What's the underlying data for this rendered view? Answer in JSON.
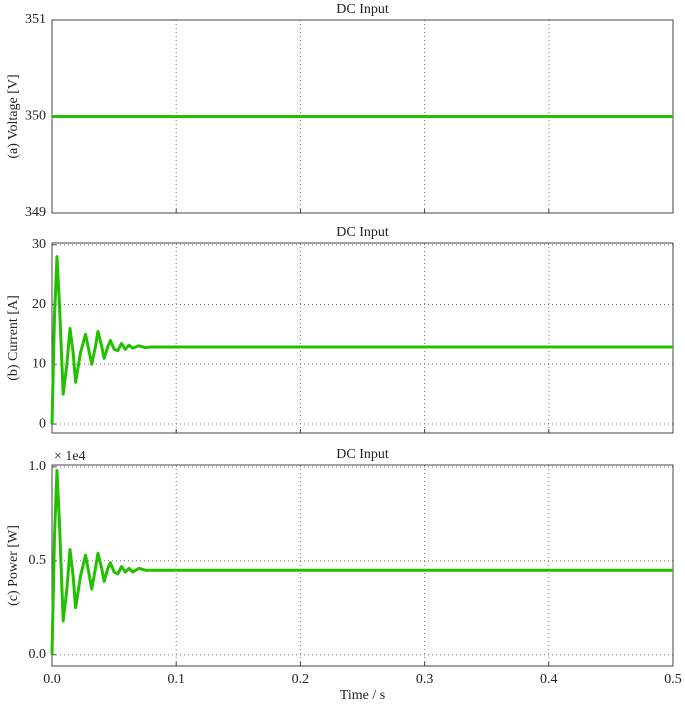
{
  "chart_data": [
    {
      "type": "line",
      "title": "DC Input",
      "ylabel": "(a) Voltage [V]",
      "x": [
        0,
        0.5
      ],
      "series": [
        {
          "name": "Voltage",
          "color": "#22c000",
          "values": [
            350,
            350
          ]
        }
      ],
      "xlim": [
        0,
        0.5
      ],
      "xticks": [
        0,
        0.1,
        0.2,
        0.3,
        0.4,
        0.5
      ],
      "ylim": [
        349,
        351
      ],
      "yticks": [
        349,
        350,
        351
      ],
      "grid": true
    },
    {
      "type": "line",
      "title": "DC Input",
      "ylabel": "(b) Current [A]",
      "x": [
        0,
        0.002,
        0.004,
        0.006,
        0.009,
        0.012,
        0.0145,
        0.017,
        0.019,
        0.023,
        0.027,
        0.029,
        0.032,
        0.035,
        0.037,
        0.04,
        0.042,
        0.045,
        0.047,
        0.05,
        0.053,
        0.056,
        0.059,
        0.062,
        0.065,
        0.07,
        0.075,
        0.08,
        0.1,
        0.2,
        0.3,
        0.4,
        0.5
      ],
      "series": [
        {
          "name": "Current",
          "color": "#22c000",
          "values": [
            0,
            18,
            28,
            20,
            5,
            10,
            16,
            12,
            7,
            12,
            15,
            13,
            10,
            13,
            15.5,
            13,
            11,
            13,
            14,
            12.5,
            12.3,
            13.5,
            12.5,
            13.2,
            12.7,
            13.1,
            12.8,
            12.9,
            12.9,
            12.9,
            12.9,
            12.9,
            12.9
          ]
        }
      ],
      "xlim": [
        0,
        0.5
      ],
      "xticks": [
        0,
        0.1,
        0.2,
        0.3,
        0.4,
        0.5
      ],
      "ylim": [
        -1.5,
        30.3
      ],
      "yticks": [
        0,
        10,
        20,
        30
      ],
      "grid": true
    },
    {
      "type": "line",
      "title": "DC Input",
      "ylabel": "(c) Power [W]",
      "xlabel": "Time / s",
      "annotation": "× 1e4",
      "x": [
        0,
        0.002,
        0.004,
        0.006,
        0.009,
        0.012,
        0.0145,
        0.017,
        0.019,
        0.023,
        0.027,
        0.029,
        0.032,
        0.035,
        0.037,
        0.04,
        0.042,
        0.045,
        0.047,
        0.05,
        0.053,
        0.056,
        0.059,
        0.062,
        0.065,
        0.07,
        0.075,
        0.08,
        0.1,
        0.2,
        0.3,
        0.4,
        0.5
      ],
      "series": [
        {
          "name": "Power",
          "color": "#22c000",
          "values": [
            0,
            0.63,
            0.98,
            0.7,
            0.18,
            0.35,
            0.56,
            0.42,
            0.25,
            0.42,
            0.53,
            0.46,
            0.35,
            0.46,
            0.54,
            0.46,
            0.39,
            0.46,
            0.49,
            0.44,
            0.43,
            0.47,
            0.44,
            0.46,
            0.44,
            0.46,
            0.45,
            0.45,
            0.45,
            0.45,
            0.45,
            0.45,
            0.45
          ]
        }
      ],
      "xlim": [
        0,
        0.5
      ],
      "xticks": [
        {
          "value": 0,
          "label": "0.0"
        },
        0.1,
        0.2,
        0.3,
        0.4,
        0.5
      ],
      "ylim": [
        -0.06,
        1.01
      ],
      "yticks": [
        {
          "value": 0,
          "label": "0.0"
        },
        {
          "value": 0.5,
          "label": "0.5"
        },
        {
          "value": 1,
          "label": "1.0"
        }
      ],
      "grid": true
    }
  ]
}
